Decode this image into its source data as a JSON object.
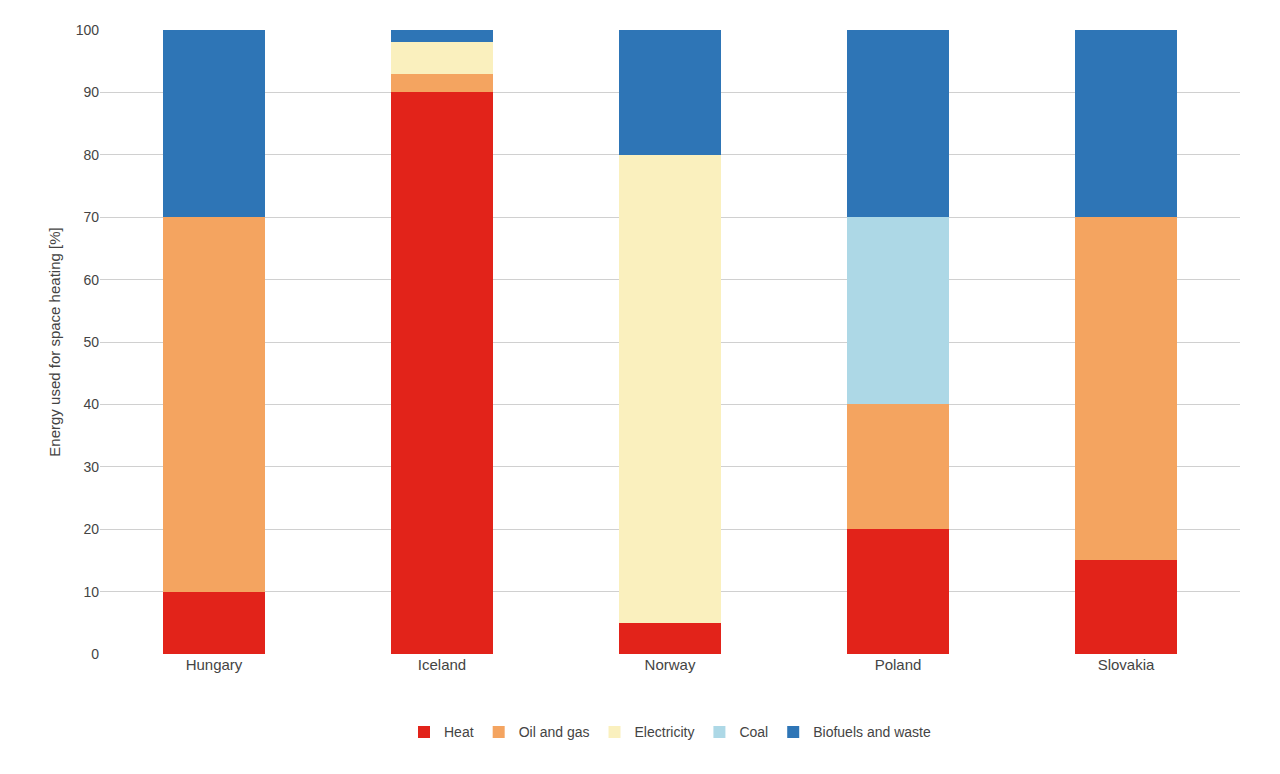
{
  "chart_data": {
    "type": "bar",
    "stacked": true,
    "categories": [
      "Hungary",
      "Iceland",
      "Norway",
      "Poland",
      "Slovakia"
    ],
    "series": [
      {
        "name": "Heat",
        "color": "#e2231a",
        "values": [
          10,
          90,
          5,
          20,
          15
        ]
      },
      {
        "name": "Oil and gas",
        "color": "#f4a460",
        "values": [
          60,
          3,
          0,
          20,
          55
        ]
      },
      {
        "name": "Electricity",
        "color": "#faf0be",
        "values": [
          0,
          5,
          75,
          0,
          0
        ]
      },
      {
        "name": "Coal",
        "color": "#add8e6",
        "values": [
          0,
          0,
          0,
          30,
          0
        ]
      },
      {
        "name": "Biofuels and waste",
        "color": "#2e75b6",
        "values": [
          30,
          2,
          20,
          30,
          30
        ]
      }
    ],
    "ylabel": "Energy used for space heating [%]",
    "ylim": [
      0,
      100
    ],
    "yticks": [
      0,
      10,
      20,
      30,
      40,
      50,
      60,
      70,
      80,
      90,
      100
    ],
    "grid": true,
    "legend": "bottom"
  }
}
